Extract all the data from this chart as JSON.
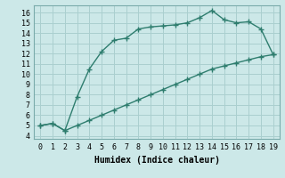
{
  "line1_x": [
    0,
    1,
    2,
    3,
    4,
    5,
    6,
    7,
    8,
    9,
    10,
    11,
    12,
    13,
    14,
    15,
    16,
    17,
    18,
    19
  ],
  "line1_y": [
    5.0,
    5.2,
    4.5,
    7.8,
    10.5,
    12.2,
    13.3,
    13.5,
    14.4,
    14.6,
    14.7,
    14.8,
    15.0,
    15.5,
    16.2,
    15.3,
    15.0,
    15.1,
    14.4,
    11.9
  ],
  "line2_x": [
    0,
    1,
    2,
    3,
    4,
    5,
    6,
    7,
    8,
    9,
    10,
    11,
    12,
    13,
    14,
    15,
    16,
    17,
    18,
    19
  ],
  "line2_y": [
    5.0,
    5.2,
    4.5,
    5.0,
    5.5,
    6.0,
    6.5,
    7.0,
    7.5,
    8.0,
    8.5,
    9.0,
    9.5,
    10.0,
    10.5,
    10.8,
    11.1,
    11.4,
    11.7,
    11.9
  ],
  "line_color": "#2e7d6e",
  "bg_color": "#cce8e8",
  "grid_color": "#aacfcf",
  "xlabel": "Humidex (Indice chaleur)",
  "xlim": [
    -0.5,
    19.5
  ],
  "ylim": [
    3.7,
    16.7
  ],
  "yticks": [
    4,
    5,
    6,
    7,
    8,
    9,
    10,
    11,
    12,
    13,
    14,
    15,
    16
  ],
  "xticks": [
    0,
    1,
    2,
    3,
    4,
    5,
    6,
    7,
    8,
    9,
    10,
    11,
    12,
    13,
    14,
    15,
    16,
    17,
    18,
    19
  ],
  "marker": "+",
  "marker_size": 4,
  "line_width": 1.0,
  "xlabel_fontsize": 7,
  "tick_fontsize": 6,
  "font_family": "monospace"
}
